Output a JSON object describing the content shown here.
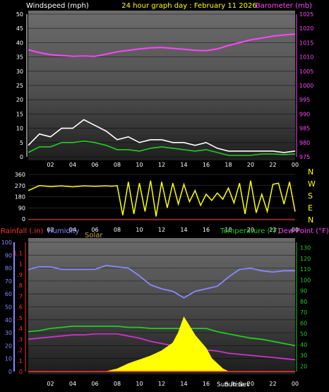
{
  "header": {
    "wind_label": "Windspeed (mph)",
    "title": "24 hour graph day : February 11 2026",
    "baro_label": "Barometer (mb)"
  },
  "bottom_header": {
    "rain_label": "Rainfall (.in)",
    "humidity_label": "Humidity",
    "solar_label": "Solar",
    "temp_label": "Temperature (°F)",
    "dew_label": "Dew Point (°F)"
  },
  "compass": [
    "N",
    "W",
    "S",
    "E",
    "N"
  ],
  "x_ticks": [
    "02",
    "04",
    "06",
    "08",
    "10",
    "12",
    "14",
    "16",
    "18",
    "20",
    "22",
    "00"
  ],
  "sun_labels": {
    "rise": "Sun Rise",
    "set": "Sun Set"
  },
  "colors": {
    "wind_gust": "#ffffff",
    "wind_avg": "#22cc22",
    "barometer": "#ff44ff",
    "direction": "#ffff00",
    "humidity": "#8888ff",
    "temperature": "#22cc22",
    "dew_point": "#cc33cc",
    "solar": "#ffff00",
    "rain": "#ff3333"
  },
  "chart_data": [
    {
      "type": "line",
      "name": "wind-barometer",
      "x_range": [
        0,
        24
      ],
      "y_left": {
        "label": "Windspeed (mph)",
        "ticks": [
          0,
          5,
          10,
          15,
          20,
          25,
          30,
          35,
          40,
          45,
          50
        ],
        "range": [
          0,
          50
        ]
      },
      "y_right": {
        "label": "Barometer (mb)",
        "ticks": [
          975,
          980,
          985,
          990,
          995,
          1000,
          1005,
          1010,
          1015,
          1020,
          1025
        ],
        "range": [
          975,
          1025
        ]
      },
      "series": [
        {
          "name": "Windspeed gust",
          "axis": "left",
          "color": "#ffffff",
          "x": [
            0,
            1,
            2,
            3,
            4,
            5,
            6,
            7,
            8,
            9,
            10,
            11,
            12,
            13,
            14,
            15,
            16,
            17,
            18,
            19,
            20,
            21,
            22,
            23,
            24
          ],
          "y": [
            4,
            8,
            7,
            10,
            10,
            13,
            11,
            9,
            6,
            7,
            5,
            6,
            6,
            5,
            5,
            4,
            5,
            3,
            2,
            2,
            2,
            2,
            2,
            1.5,
            2
          ]
        },
        {
          "name": "Windspeed avg",
          "axis": "left",
          "color": "#22cc22",
          "x": [
            0,
            1,
            2,
            3,
            4,
            5,
            6,
            7,
            8,
            9,
            10,
            11,
            12,
            13,
            14,
            15,
            16,
            17,
            18,
            19,
            20,
            21,
            22,
            23,
            24
          ],
          "y": [
            1.5,
            3.5,
            3.5,
            5,
            5,
            5.5,
            5,
            4,
            2.5,
            2.5,
            2,
            3,
            3.5,
            3,
            2.5,
            2,
            2.5,
            1.5,
            0.5,
            0.5,
            0.5,
            1,
            1,
            0.8,
            1
          ]
        },
        {
          "name": "Barometer",
          "axis": "right",
          "color": "#ff44ff",
          "x": [
            0,
            1,
            2,
            3,
            4,
            5,
            6,
            7,
            8,
            9,
            10,
            11,
            12,
            13,
            14,
            15,
            16,
            17,
            18,
            19,
            20,
            21,
            22,
            23,
            24
          ],
          "y": [
            1012.5,
            1011.5,
            1010.8,
            1010.5,
            1010.2,
            1010.3,
            1010.2,
            1011,
            1011.8,
            1012.3,
            1012.8,
            1013.2,
            1013.3,
            1013,
            1012.7,
            1012.3,
            1012.2,
            1012.8,
            1014,
            1015,
            1016,
            1016.6,
            1017.3,
            1017.7,
            1018
          ]
        }
      ]
    },
    {
      "type": "scatter",
      "name": "wind-direction",
      "x_range": [
        0,
        24
      ],
      "y_axis": {
        "ticks": [
          0,
          90,
          180,
          270,
          360
        ],
        "range": [
          0,
          360
        ]
      },
      "series": [
        {
          "name": "Wind direction",
          "color": "#ffff00",
          "x": [
            0,
            1,
            2,
            3,
            4,
            5,
            6,
            7,
            7.5,
            8,
            8.5,
            9,
            9.5,
            10,
            10.5,
            11,
            11.5,
            12,
            12.5,
            13,
            13.5,
            14,
            14.5,
            15,
            15.5,
            16,
            16.5,
            17,
            17.5,
            18,
            18.5,
            19,
            19.5,
            20,
            20.5,
            21,
            21.5,
            22,
            22.5,
            23,
            23.5,
            24
          ],
          "y": [
            230,
            270,
            262,
            268,
            260,
            268,
            264,
            268,
            265,
            270,
            30,
            300,
            40,
            290,
            60,
            310,
            20,
            300,
            90,
            290,
            120,
            280,
            140,
            230,
            110,
            200,
            150,
            210,
            160,
            250,
            130,
            290,
            40,
            310,
            50,
            200,
            60,
            280,
            290,
            120,
            300,
            60
          ]
        }
      ]
    },
    {
      "type": "line",
      "name": "humidity-temperature-solar",
      "x_range": [
        0,
        24
      ],
      "y_left_humidity": {
        "ticks": [
          0,
          10,
          20,
          30,
          40,
          50,
          60,
          70,
          80,
          90,
          100
        ],
        "range": [
          0,
          100
        ]
      },
      "y_left_rain": {
        "label": "Rainfall (.in)",
        "ticks": [
          0,
          0.1,
          0.2,
          0.3,
          0.4,
          0.5,
          0.6,
          0.7,
          0.8,
          0.9,
          1,
          1.1
        ],
        "range": [
          0,
          1.2
        ]
      },
      "y_right": {
        "label": "Temperature (°F)",
        "ticks": [
          20,
          30,
          40,
          50,
          60,
          70,
          80,
          90,
          100,
          110,
          120,
          130
        ],
        "range": [
          15,
          135
        ]
      },
      "series": [
        {
          "name": "Humidity",
          "axis": "humidity",
          "color": "#8888ff",
          "x": [
            0,
            1,
            2,
            3,
            4,
            5,
            6,
            7,
            8,
            9,
            10,
            11,
            12,
            13,
            14,
            15,
            16,
            17,
            18,
            19,
            20,
            21,
            22,
            23,
            24
          ],
          "y": [
            79,
            81,
            81,
            79,
            79,
            79,
            79,
            82,
            81,
            80,
            74,
            67,
            64,
            62,
            57,
            62,
            64,
            66,
            73,
            79,
            80,
            78,
            77,
            78,
            78
          ]
        },
        {
          "name": "Temperature",
          "axis": "right",
          "color": "#22cc22",
          "x": [
            0,
            1,
            2,
            3,
            4,
            5,
            6,
            7,
            8,
            9,
            10,
            11,
            12,
            13,
            14,
            15,
            16,
            17,
            18,
            19,
            20,
            21,
            22,
            23,
            24
          ],
          "y": [
            52,
            53,
            55,
            56,
            57,
            57,
            57,
            57,
            57,
            56,
            56,
            55,
            55,
            55,
            55,
            55,
            55,
            52,
            50,
            48,
            46,
            45,
            43,
            41,
            39
          ]
        },
        {
          "name": "Dew Point",
          "axis": "right",
          "color": "#cc33cc",
          "x": [
            0,
            1,
            2,
            3,
            4,
            5,
            6,
            7,
            8,
            9,
            10,
            11,
            12,
            13,
            14,
            15,
            16,
            17,
            18,
            19,
            20,
            21,
            22,
            23,
            24
          ],
          "y": [
            45,
            46,
            47,
            48,
            49,
            49,
            50,
            50,
            50,
            48,
            46,
            43,
            41,
            39,
            37,
            36,
            35,
            34,
            32,
            31,
            30,
            29,
            28,
            27,
            26
          ]
        },
        {
          "name": "Solar",
          "axis": "humidity",
          "color": "#ffff00",
          "x": [
            7,
            8,
            9,
            10,
            11,
            12,
            13,
            13.5,
            14,
            14.5,
            15,
            16,
            16.5,
            17,
            17.5,
            18
          ],
          "y": [
            0,
            2,
            6,
            9,
            12,
            16,
            22,
            30,
            42,
            35,
            28,
            18,
            10,
            6,
            2,
            0
          ]
        },
        {
          "name": "Rainfall",
          "axis": "rain",
          "color": "#ff3333",
          "x": [
            0,
            24
          ],
          "y": [
            0,
            0
          ]
        }
      ]
    }
  ]
}
